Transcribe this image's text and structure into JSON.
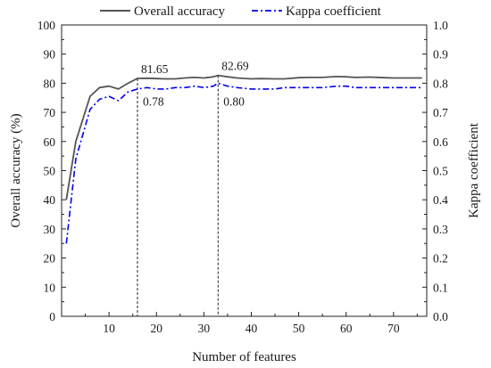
{
  "chart_data": {
    "type": "line",
    "xlabel": "Number of features",
    "ylabel_left": "Overall accuracy (%)",
    "ylabel_right": "Kappa coefficient",
    "xlim": [
      0,
      77
    ],
    "ylim_left": [
      0,
      100
    ],
    "ylim_right": [
      0.0,
      1.0
    ],
    "x_ticks": [
      10,
      20,
      30,
      40,
      50,
      60,
      70
    ],
    "y_ticks_left": [
      "0",
      "10",
      "20",
      "30",
      "40",
      "50",
      "60",
      "70",
      "80",
      "90",
      "100"
    ],
    "y_ticks_right": [
      "0.0",
      "0.1",
      "0.2",
      "0.3",
      "0.4",
      "0.5",
      "0.6",
      "0.7",
      "0.8",
      "0.9",
      "1.0"
    ],
    "grid": false,
    "legend_position": "top",
    "series": [
      {
        "name": "Overall accuracy",
        "axis": "left",
        "style": "solid",
        "color": "#555555",
        "x": [
          1,
          3,
          6,
          8,
          10,
          12,
          14,
          16,
          18,
          20,
          22,
          24,
          26,
          28,
          30,
          32,
          33,
          35,
          37,
          40,
          42,
          45,
          47,
          50,
          52,
          55,
          58,
          60,
          62,
          65,
          68,
          70,
          72,
          76
        ],
        "values": [
          40,
          60,
          75.5,
          78.5,
          79,
          78,
          80,
          81.65,
          81.7,
          81.6,
          81.5,
          81.5,
          81.8,
          82,
          81.8,
          82.2,
          82.69,
          82.2,
          81.8,
          81.5,
          81.6,
          81.5,
          81.5,
          81.9,
          82,
          82,
          82.3,
          82.2,
          82,
          82.1,
          81.9,
          81.8,
          81.8,
          81.8
        ]
      },
      {
        "name": "Kappa coefficient",
        "axis": "right",
        "style": "dashdot",
        "color": "#0000ee",
        "x": [
          1,
          3,
          6,
          8,
          10,
          12,
          14,
          16,
          18,
          20,
          22,
          24,
          26,
          28,
          30,
          32,
          33,
          35,
          37,
          40,
          42,
          45,
          47,
          50,
          52,
          55,
          58,
          60,
          62,
          65,
          68,
          70,
          72,
          76
        ],
        "values": [
          0.25,
          0.54,
          0.71,
          0.745,
          0.755,
          0.74,
          0.77,
          0.78,
          0.785,
          0.78,
          0.78,
          0.785,
          0.785,
          0.79,
          0.785,
          0.79,
          0.8,
          0.79,
          0.785,
          0.78,
          0.78,
          0.78,
          0.785,
          0.785,
          0.785,
          0.785,
          0.79,
          0.79,
          0.785,
          0.785,
          0.785,
          0.785,
          0.785,
          0.785
        ]
      }
    ],
    "markers": [
      {
        "x": 16,
        "value_label": "81.65",
        "kappa_label": "0.78"
      },
      {
        "x": 33,
        "value_label": "82.69",
        "kappa_label": "0.80"
      }
    ]
  }
}
